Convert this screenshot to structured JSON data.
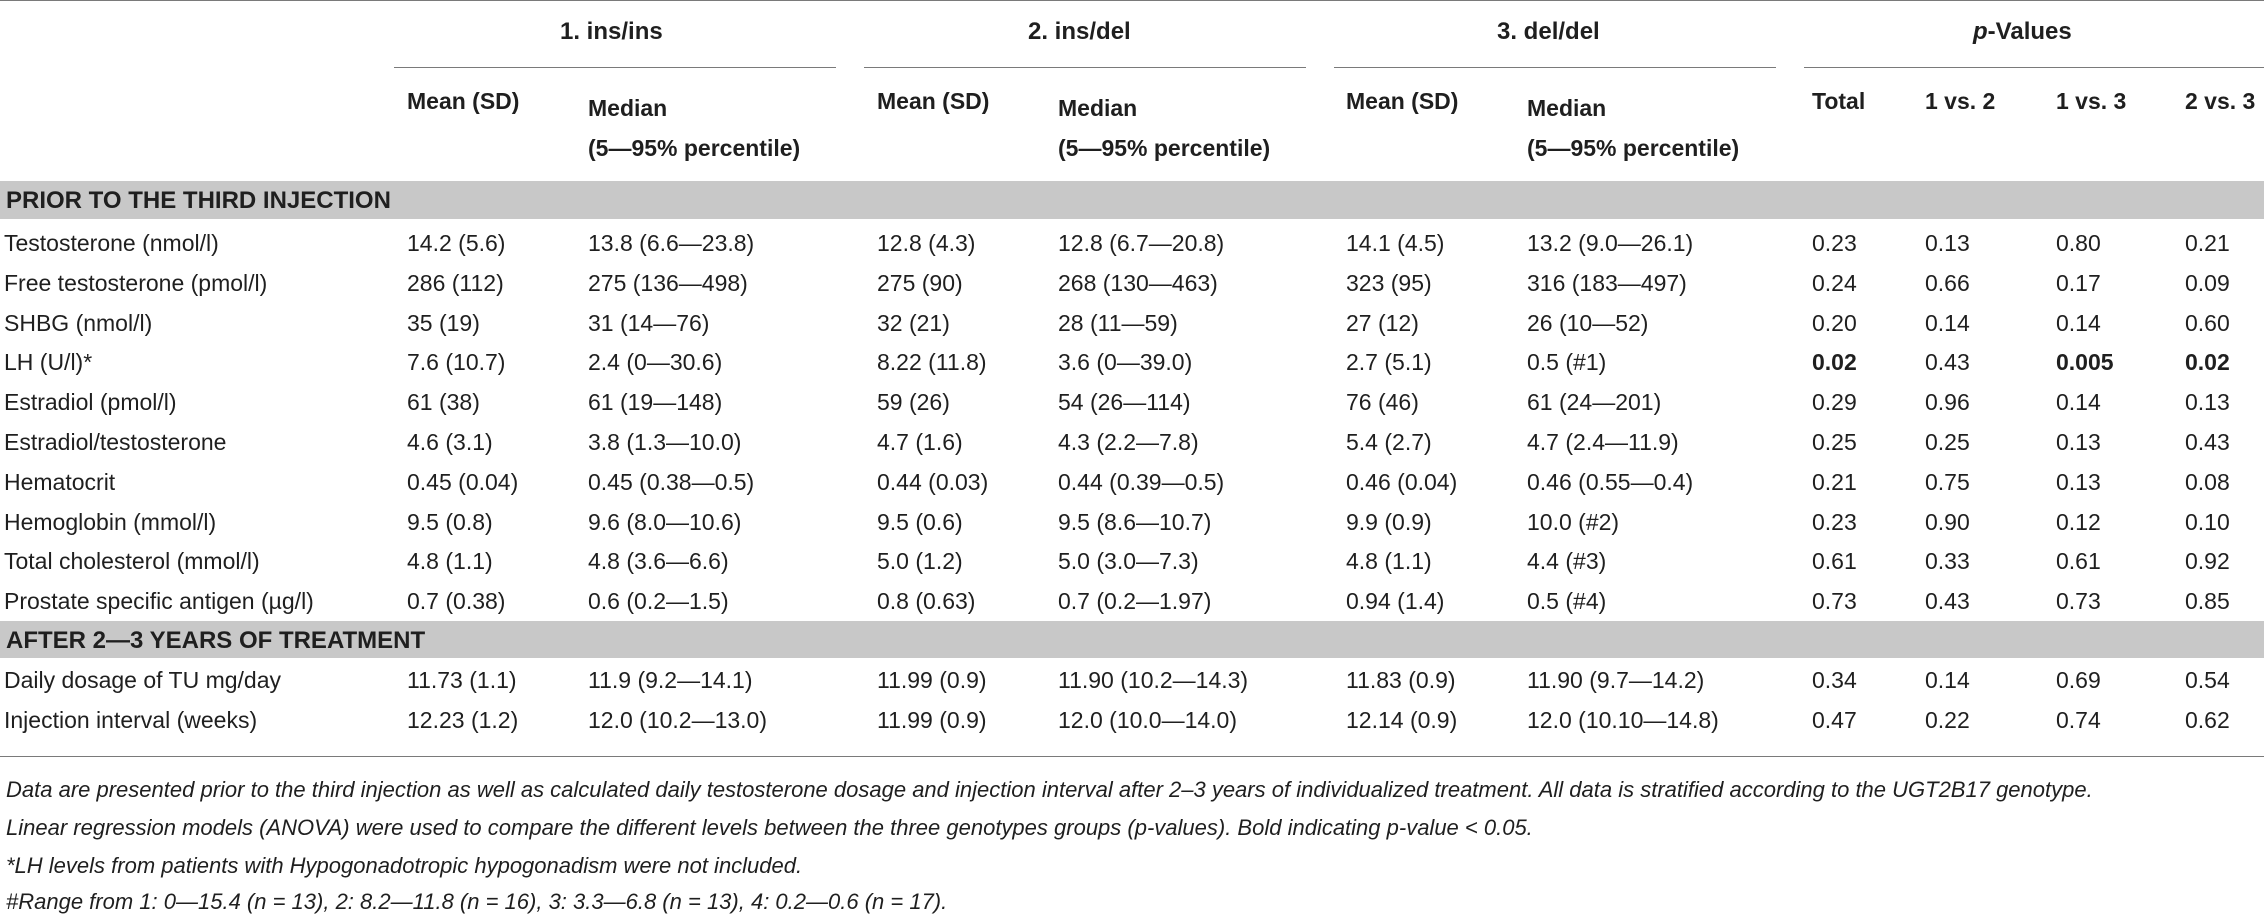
{
  "groups": [
    "1. ins/ins",
    "2. ins/del",
    "3. del/del"
  ],
  "pvalues_title": {
    "prefix": "p",
    "suffix": "-Values"
  },
  "subheaders": {
    "mean": "Mean (SD)",
    "median_line1": "Median",
    "median_line2": "(5—95% percentile)",
    "p_cols": [
      "Total",
      "1 vs. 2",
      "1 vs. 3",
      "2 vs. 3"
    ]
  },
  "sections": [
    {
      "title": "PRIOR TO THE THIRD INJECTION",
      "rows": [
        {
          "label": "Testosterone (nmol/l)",
          "values": [
            "14.2 (5.6)",
            "13.8 (6.6—23.8)",
            "12.8 (4.3)",
            "12.8 (6.7—20.8)",
            "14.1 (4.5)",
            "13.2 (9.0—26.1)"
          ],
          "p": [
            "0.23",
            "0.13",
            "0.80",
            "0.21"
          ]
        },
        {
          "label": "Free testosterone (pmol/l)",
          "values": [
            "286 (112)",
            "275 (136—498)",
            "275 (90)",
            "268 (130—463)",
            "323 (95)",
            "316 (183—497)"
          ],
          "p": [
            "0.24",
            "0.66",
            "0.17",
            "0.09"
          ]
        },
        {
          "label": "SHBG (nmol/l)",
          "values": [
            "35 (19)",
            "31 (14—76)",
            "32 (21)",
            "28 (11—59)",
            "27 (12)",
            "26 (10—52)"
          ],
          "p": [
            "0.20",
            "0.14",
            "0.14",
            "0.60"
          ]
        },
        {
          "label": "LH (U/l)*",
          "values": [
            "7.6 (10.7)",
            "2.4 (0—30.6)",
            "8.22 (11.8)",
            "3.6 (0—39.0)",
            "2.7 (5.1)",
            "0.5 (#1)"
          ],
          "p": [
            "0.02",
            "0.43",
            "0.005",
            "0.02"
          ],
          "p_bold": [
            true,
            false,
            true,
            true
          ]
        },
        {
          "label": "Estradiol (pmol/l)",
          "values": [
            "61 (38)",
            "61 (19—148)",
            "59 (26)",
            "54 (26—114)",
            "76 (46)",
            "61 (24—201)"
          ],
          "p": [
            "0.29",
            "0.96",
            "0.14",
            "0.13"
          ]
        },
        {
          "label": "Estradiol/testosterone",
          "values": [
            "4.6 (3.1)",
            "3.8 (1.3—10.0)",
            "4.7 (1.6)",
            "4.3 (2.2—7.8)",
            "5.4 (2.7)",
            "4.7 (2.4—11.9)"
          ],
          "p": [
            "0.25",
            "0.25",
            "0.13",
            "0.43"
          ]
        },
        {
          "label": "Hematocrit",
          "values": [
            "0.45 (0.04)",
            "0.45 (0.38—0.5)",
            "0.44 (0.03)",
            "0.44 (0.39—0.5)",
            "0.46 (0.04)",
            "0.46 (0.55—0.4)"
          ],
          "p": [
            "0.21",
            "0.75",
            "0.13",
            "0.08"
          ]
        },
        {
          "label": "Hemoglobin (mmol/l)",
          "values": [
            "9.5 (0.8)",
            "9.6 (8.0—10.6)",
            "9.5 (0.6)",
            "9.5 (8.6—10.7)",
            "9.9 (0.9)",
            "10.0 (#2)"
          ],
          "p": [
            "0.23",
            "0.90",
            "0.12",
            "0.10"
          ]
        },
        {
          "label": "Total cholesterol (mmol/l)",
          "values": [
            "4.8 (1.1)",
            "4.8 (3.6—6.6)",
            "5.0 (1.2)",
            "5.0 (3.0—7.3)",
            "4.8 (1.1)",
            "4.4 (#3)"
          ],
          "p": [
            "0.61",
            "0.33",
            "0.61",
            "0.92"
          ]
        },
        {
          "label": "Prostate specific antigen (µg/l)",
          "values": [
            "0.7 (0.38)",
            "0.6 (0.2—1.5)",
            "0.8 (0.63)",
            "0.7 (0.2—1.97)",
            "0.94 (1.4)",
            "0.5 (#4)"
          ],
          "p": [
            "0.73",
            "0.43",
            "0.73",
            "0.85"
          ]
        }
      ]
    },
    {
      "title": "AFTER 2—3 YEARS OF TREATMENT",
      "rows": [
        {
          "label": "Daily dosage of TU mg/day",
          "values": [
            "11.73 (1.1)",
            "11.9 (9.2—14.1)",
            "11.99 (0.9)",
            "11.90 (10.2—14.3)",
            "11.83 (0.9)",
            "11.90 (9.7—14.2)"
          ],
          "p": [
            "0.34",
            "0.14",
            "0.69",
            "0.54"
          ]
        },
        {
          "label": "Injection interval (weeks)",
          "values": [
            "12.23 (1.2)",
            "12.0 (10.2—13.0)",
            "11.99 (0.9)",
            "12.0 (10.0—14.0)",
            "12.14 (0.9)",
            "12.0 (10.10—14.8)"
          ],
          "p": [
            "0.47",
            "0.22",
            "0.74",
            "0.62"
          ]
        }
      ]
    }
  ],
  "footnotes": [
    "Data are presented prior to the third injection as well as calculated daily testosterone dosage and injection interval after 2–3 years of individualized treatment. All data is stratified according to the UGT2B17 genotype.",
    "Linear regression models (ANOVA) were used to compare the different levels between the three genotypes groups (p-values). Bold indicating p-value < 0.05.",
    "*LH levels from patients with Hypogonadotropic hypogonadism were not included.",
    "#Range from 1: 0—15.4 (n = 13), 2: 8.2—11.8 (n = 16), 3: 3.3—6.8 (n = 13), 4: 0.2—0.6 (n = 17)."
  ]
}
